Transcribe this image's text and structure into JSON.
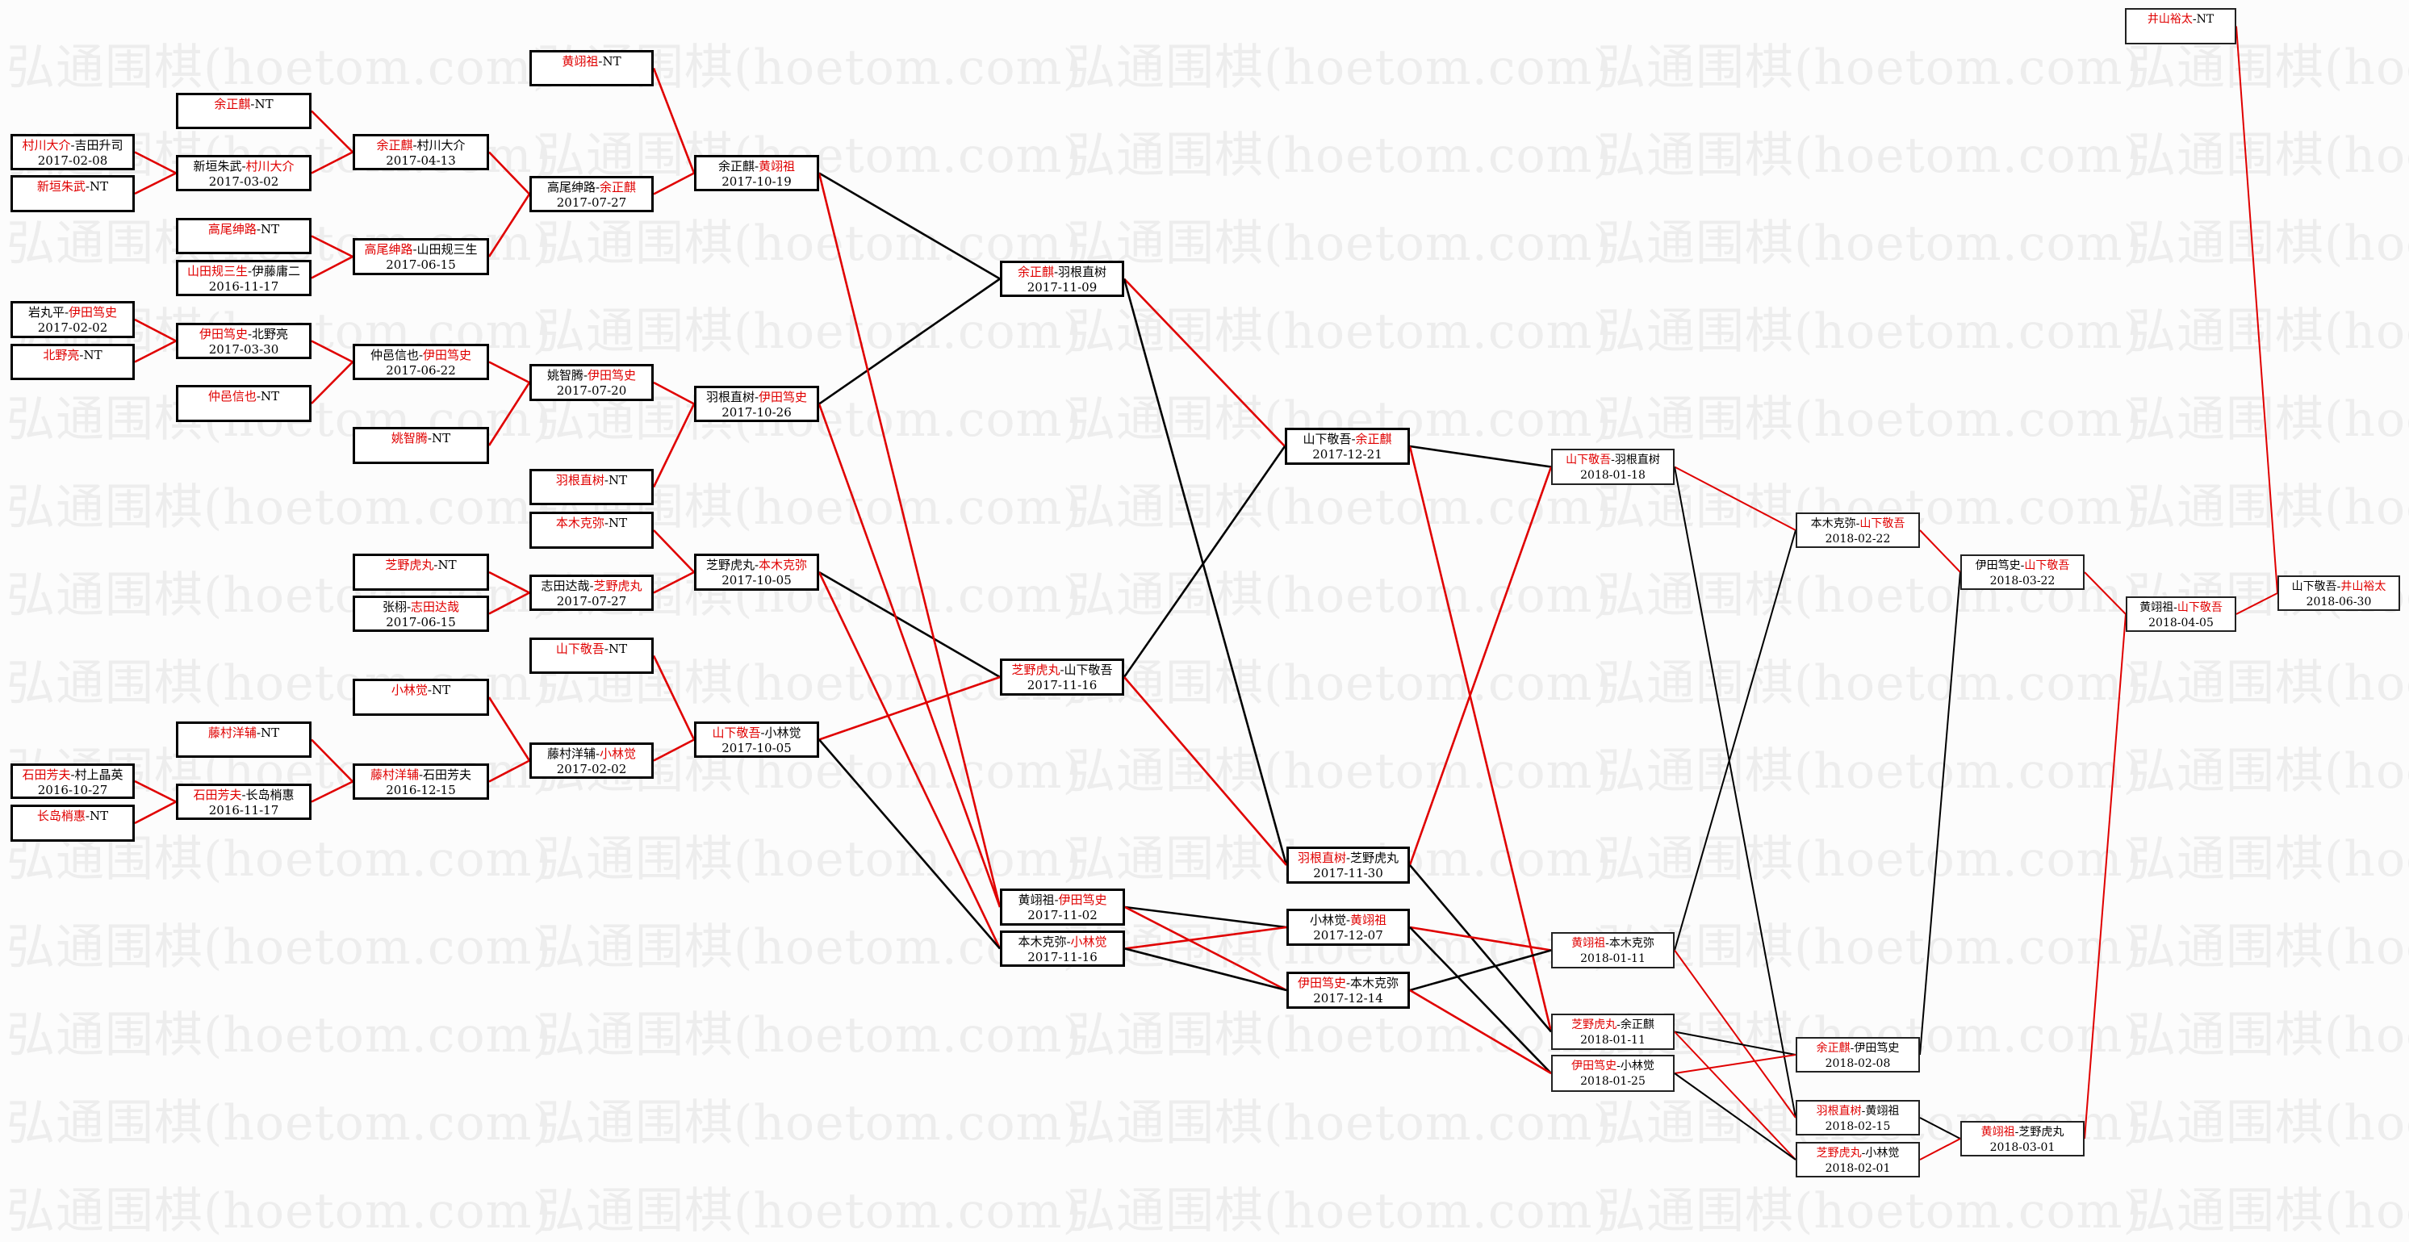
{
  "watermark": "弘通围棋(hoetom.com)",
  "colors": {
    "winner_text": "#e00000",
    "winner_path": "#e00000",
    "loser_path": "#000000"
  },
  "matches": [
    {
      "p": [
        "村川大介",
        "吉田升司"
      ],
      "red": 0,
      "date": "2017-02-08"
    },
    {
      "p": [
        "新垣朱武",
        "NT"
      ],
      "red": 0,
      "date": ""
    },
    {
      "p": [
        "岩丸平",
        "伊田笃史"
      ],
      "red": 1,
      "date": "2017-02-02"
    },
    {
      "p": [
        "北野亮",
        "NT"
      ],
      "red": 0,
      "date": ""
    },
    {
      "p": [
        "石田芳夫",
        "村上晶英"
      ],
      "red": 0,
      "date": "2016-10-27"
    },
    {
      "p": [
        "长岛梢惠",
        "NT"
      ],
      "red": 0,
      "date": ""
    },
    {
      "p": [
        "余正麒",
        "NT"
      ],
      "red": 0,
      "date": ""
    },
    {
      "p": [
        "新垣朱武",
        "村川大介"
      ],
      "red": 1,
      "date": "2017-03-02"
    },
    {
      "p": [
        "高尾绅路",
        "NT"
      ],
      "red": 0,
      "date": ""
    },
    {
      "p": [
        "山田规三生",
        "伊藤庸二"
      ],
      "red": 0,
      "date": "2016-11-17"
    },
    {
      "p": [
        "伊田笃史",
        "北野亮"
      ],
      "red": 0,
      "date": "2017-03-30"
    },
    {
      "p": [
        "仲邑信也",
        "NT"
      ],
      "red": 0,
      "date": ""
    },
    {
      "p": [
        "藤村洋辅",
        "NT"
      ],
      "red": 0,
      "date": ""
    },
    {
      "p": [
        "石田芳夫",
        "长岛梢惠"
      ],
      "red": 0,
      "date": "2016-11-17"
    },
    {
      "p": [
        "余正麒",
        "村川大介"
      ],
      "red": 0,
      "date": "2017-04-13"
    },
    {
      "p": [
        "高尾绅路",
        "山田规三生"
      ],
      "red": 0,
      "date": "2017-06-15"
    },
    {
      "p": [
        "仲邑信也",
        "伊田笃史"
      ],
      "red": 1,
      "date": "2017-06-22"
    },
    {
      "p": [
        "姚智腾",
        "NT"
      ],
      "red": 0,
      "date": ""
    },
    {
      "p": [
        "芝野虎丸",
        "NT"
      ],
      "red": 0,
      "date": ""
    },
    {
      "p": [
        "张栩",
        "志田达哉"
      ],
      "red": 1,
      "date": "2017-06-15"
    },
    {
      "p": [
        "小林觉",
        "NT"
      ],
      "red": 0,
      "date": ""
    },
    {
      "p": [
        "藤村洋辅",
        "石田芳夫"
      ],
      "red": 0,
      "date": "2016-12-15"
    },
    {
      "p": [
        "黄翊祖",
        "NT"
      ],
      "red": 0,
      "date": ""
    },
    {
      "p": [
        "高尾绅路",
        "余正麒"
      ],
      "red": 1,
      "date": "2017-07-27"
    },
    {
      "p": [
        "姚智腾",
        "伊田笃史"
      ],
      "red": 1,
      "date": "2017-07-20"
    },
    {
      "p": [
        "羽根直树",
        "NT"
      ],
      "red": 0,
      "date": ""
    },
    {
      "p": [
        "本木克弥",
        "NT"
      ],
      "red": 0,
      "date": ""
    },
    {
      "p": [
        "志田达哉",
        "芝野虎丸"
      ],
      "red": 1,
      "date": "2017-07-27"
    },
    {
      "p": [
        "山下敬吾",
        "NT"
      ],
      "red": 0,
      "date": ""
    },
    {
      "p": [
        "藤村洋辅",
        "小林觉"
      ],
      "red": 1,
      "date": "2017-02-02"
    },
    {
      "p": [
        "余正麒",
        "黄翊祖"
      ],
      "red": 1,
      "date": "2017-10-19"
    },
    {
      "p": [
        "羽根直树",
        "伊田笃史"
      ],
      "red": 1,
      "date": "2017-10-26"
    },
    {
      "p": [
        "芝野虎丸",
        "本木克弥"
      ],
      "red": 1,
      "date": "2017-10-05"
    },
    {
      "p": [
        "山下敬吾",
        "小林觉"
      ],
      "red": 0,
      "date": "2017-10-05"
    },
    {
      "p": [
        "余正麒",
        "羽根直树"
      ],
      "red": 0,
      "date": "2017-11-09"
    },
    {
      "p": [
        "芝野虎丸",
        "山下敬吾"
      ],
      "red": 0,
      "date": "2017-11-16"
    },
    {
      "p": [
        "黄翊祖",
        "伊田笃史"
      ],
      "red": 1,
      "date": "2017-11-02"
    },
    {
      "p": [
        "本木克弥",
        "小林觉"
      ],
      "red": 1,
      "date": "2017-11-16"
    },
    {
      "p": [
        "山下敬吾",
        "余正麒"
      ],
      "red": 1,
      "date": "2017-12-21"
    },
    {
      "p": [
        "羽根直树",
        "芝野虎丸"
      ],
      "red": 0,
      "date": "2017-11-30"
    },
    {
      "p": [
        "小林觉",
        "黄翊祖"
      ],
      "red": 1,
      "date": "2017-12-07"
    },
    {
      "p": [
        "伊田笃史",
        "本木克弥"
      ],
      "red": 0,
      "date": "2017-12-14"
    },
    {
      "p": [
        "山下敬吾",
        "羽根直树"
      ],
      "red": 0,
      "date": "2018-01-18"
    },
    {
      "p": [
        "黄翊祖",
        "本木克弥"
      ],
      "red": 0,
      "date": "2018-01-11"
    },
    {
      "p": [
        "芝野虎丸",
        "余正麒"
      ],
      "red": 0,
      "date": "2018-01-11"
    },
    {
      "p": [
        "伊田笃史",
        "小林觉"
      ],
      "red": 0,
      "date": "2018-01-25"
    },
    {
      "p": [
        "本木克弥",
        "山下敬吾"
      ],
      "red": 1,
      "date": "2018-02-22"
    },
    {
      "p": [
        "余正麒",
        "伊田笃史"
      ],
      "red": 0,
      "date": "2018-02-08"
    },
    {
      "p": [
        "羽根直树",
        "黄翊祖"
      ],
      "red": 0,
      "date": "2018-02-15"
    },
    {
      "p": [
        "芝野虎丸",
        "小林觉"
      ],
      "red": 0,
      "date": "2018-02-01"
    },
    {
      "p": [
        "伊田笃史",
        "山下敬吾"
      ],
      "red": 1,
      "date": "2018-03-22"
    },
    {
      "p": [
        "黄翊祖",
        "芝野虎丸"
      ],
      "red": 0,
      "date": "2018-03-01"
    },
    {
      "p": [
        "黄翊祖",
        "山下敬吾"
      ],
      "red": 1,
      "date": "2018-04-05"
    },
    {
      "p": [
        "山下敬吾",
        "井山裕太"
      ],
      "red": 1,
      "date": "2018-06-30"
    },
    {
      "p": [
        "井山裕太",
        "NT"
      ],
      "red": 0,
      "date": ""
    }
  ],
  "edges": [
    [
      0,
      7,
      "winner"
    ],
    [
      1,
      7,
      "winner"
    ],
    [
      2,
      10,
      "winner"
    ],
    [
      3,
      10,
      "winner"
    ],
    [
      4,
      13,
      "winner"
    ],
    [
      5,
      13,
      "winner"
    ],
    [
      6,
      14,
      "winner"
    ],
    [
      7,
      14,
      "winner"
    ],
    [
      8,
      15,
      "winner"
    ],
    [
      9,
      15,
      "winner"
    ],
    [
      10,
      16,
      "winner"
    ],
    [
      11,
      16,
      "winner"
    ],
    [
      12,
      21,
      "winner"
    ],
    [
      13,
      21,
      "winner"
    ],
    [
      14,
      23,
      "winner"
    ],
    [
      15,
      23,
      "winner"
    ],
    [
      16,
      24,
      "winner"
    ],
    [
      17,
      24,
      "winner"
    ],
    [
      18,
      27,
      "winner"
    ],
    [
      19,
      27,
      "winner"
    ],
    [
      20,
      29,
      "winner"
    ],
    [
      21,
      29,
      "winner"
    ],
    [
      22,
      30,
      "winner"
    ],
    [
      23,
      30,
      "winner"
    ],
    [
      24,
      31,
      "winner"
    ],
    [
      25,
      31,
      "winner"
    ],
    [
      26,
      32,
      "winner"
    ],
    [
      27,
      32,
      "winner"
    ],
    [
      28,
      33,
      "winner"
    ],
    [
      29,
      33,
      "winner"
    ],
    [
      30,
      34,
      "loser"
    ],
    [
      31,
      34,
      "loser"
    ],
    [
      32,
      35,
      "loser"
    ],
    [
      33,
      35,
      "winner"
    ],
    [
      30,
      36,
      "winner"
    ],
    [
      31,
      36,
      "winner"
    ],
    [
      32,
      37,
      "winner"
    ],
    [
      33,
      37,
      "loser"
    ],
    [
      34,
      38,
      "winner"
    ],
    [
      34,
      39,
      "loser"
    ],
    [
      35,
      38,
      "loser"
    ],
    [
      35,
      39,
      "winner"
    ],
    [
      36,
      40,
      "loser"
    ],
    [
      36,
      41,
      "winner"
    ],
    [
      37,
      40,
      "winner"
    ],
    [
      37,
      41,
      "loser"
    ],
    [
      38,
      42,
      "loser"
    ],
    [
      38,
      44,
      "winner"
    ],
    [
      39,
      42,
      "winner"
    ],
    [
      39,
      44,
      "loser"
    ],
    [
      40,
      43,
      "winner"
    ],
    [
      40,
      45,
      "loser"
    ],
    [
      41,
      43,
      "loser"
    ],
    [
      41,
      45,
      "winner"
    ],
    [
      42,
      46,
      "winner"
    ],
    [
      42,
      48,
      "loser"
    ],
    [
      43,
      46,
      "loser"
    ],
    [
      43,
      48,
      "winner"
    ],
    [
      44,
      47,
      "loser"
    ],
    [
      44,
      49,
      "winner"
    ],
    [
      45,
      47,
      "winner"
    ],
    [
      45,
      49,
      "loser"
    ],
    [
      46,
      50,
      "winner"
    ],
    [
      47,
      50,
      "loser"
    ],
    [
      48,
      51,
      "loser"
    ],
    [
      49,
      51,
      "winner"
    ],
    [
      50,
      52,
      "winner"
    ],
    [
      51,
      52,
      "winner"
    ],
    [
      52,
      53,
      "winner"
    ],
    [
      54,
      53,
      "winner"
    ]
  ]
}
